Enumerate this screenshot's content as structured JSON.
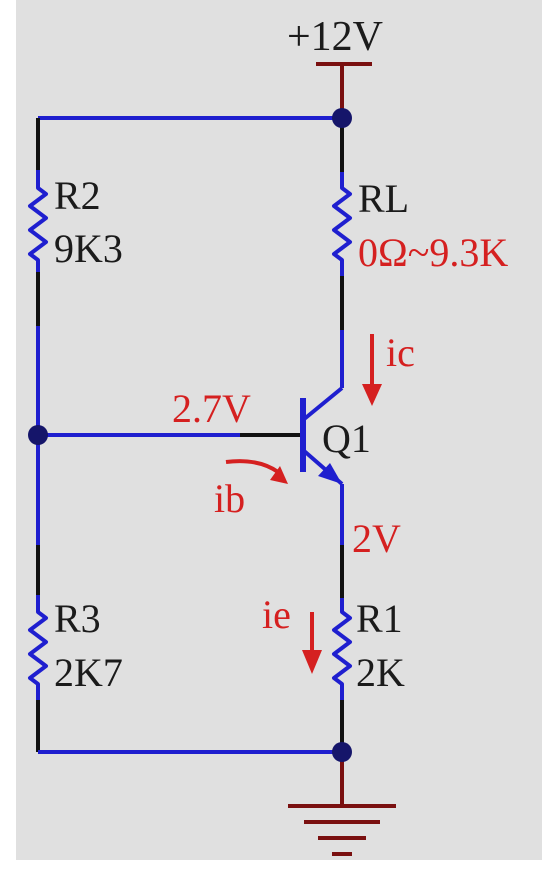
{
  "colors": {
    "background": "#e0e0e0",
    "frame": "#ffffff",
    "wire_blue": "#1f1fcf",
    "wire_black": "#111111",
    "power_dark_red": "#7a1010",
    "junction": "#15156a",
    "label_black": "#1b1b1b",
    "label_red": "#d52020"
  },
  "power": {
    "label": "+12V"
  },
  "resistors": {
    "r2": {
      "name": "R2",
      "value": "9K3"
    },
    "rl": {
      "name": "RL",
      "value": "0Ω~9.3K"
    },
    "r3": {
      "name": "R3",
      "value": "2K7"
    },
    "r1": {
      "name": "R1",
      "value": "2K"
    }
  },
  "transistor": {
    "name": "Q1"
  },
  "annotations": {
    "base_voltage": "2.7V",
    "emitter_voltage": "2V",
    "collector_current": "ic",
    "base_current": "ib",
    "emitter_current": "ie"
  }
}
